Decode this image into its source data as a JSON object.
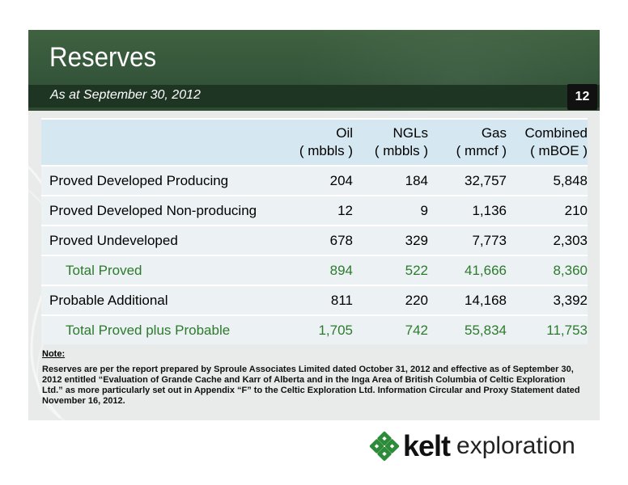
{
  "header": {
    "title": "Reserves",
    "subtitle": "As at September 30, 2012",
    "page_number": "12"
  },
  "table": {
    "columns": [
      {
        "line1": "Oil",
        "line2": "( mbbls )"
      },
      {
        "line1": "NGLs",
        "line2": "( mbbls )"
      },
      {
        "line1": "Gas",
        "line2": "( mmcf )"
      },
      {
        "line1": "Combined",
        "line2": "( mBOE )"
      }
    ],
    "rows": [
      {
        "label": "Proved Developed Producing",
        "values": [
          "204",
          "184",
          "32,757",
          "5,848"
        ],
        "total": false
      },
      {
        "label": "Proved Developed Non-producing",
        "values": [
          "12",
          "9",
          "1,136",
          "210"
        ],
        "total": false
      },
      {
        "label": "Proved Undeveloped",
        "values": [
          "678",
          "329",
          "7,773",
          "2,303"
        ],
        "total": false
      },
      {
        "label": "Total  Proved",
        "values": [
          "894",
          "522",
          "41,666",
          "8,360"
        ],
        "total": true
      },
      {
        "label": "Probable Additional",
        "values": [
          "811",
          "220",
          "14,168",
          "3,392"
        ],
        "total": false
      },
      {
        "label": "Total Proved plus Probable",
        "values": [
          "1,705",
          "742",
          "55,834",
          "11,753"
        ],
        "total": true
      }
    ]
  },
  "note": {
    "title": "Note:",
    "text": "Reserves are per the report prepared by Sproule Associates Limited dated October 31, 2012 and effective as of September 30, 2012 entitled “Evaluation of Grande Cache and Karr of Alberta and in the Inga Area of British Columbia of Celtic Exploration Ltd.” as more particularly set out in Appendix “F” to the Celtic Exploration Ltd. Information Circular and Proxy Statement dated November 16, 2012."
  },
  "logo": {
    "brand": "kelt",
    "suffix": "exploration",
    "icon": "kelt-knot-icon",
    "color": "#2e8b3a"
  }
}
